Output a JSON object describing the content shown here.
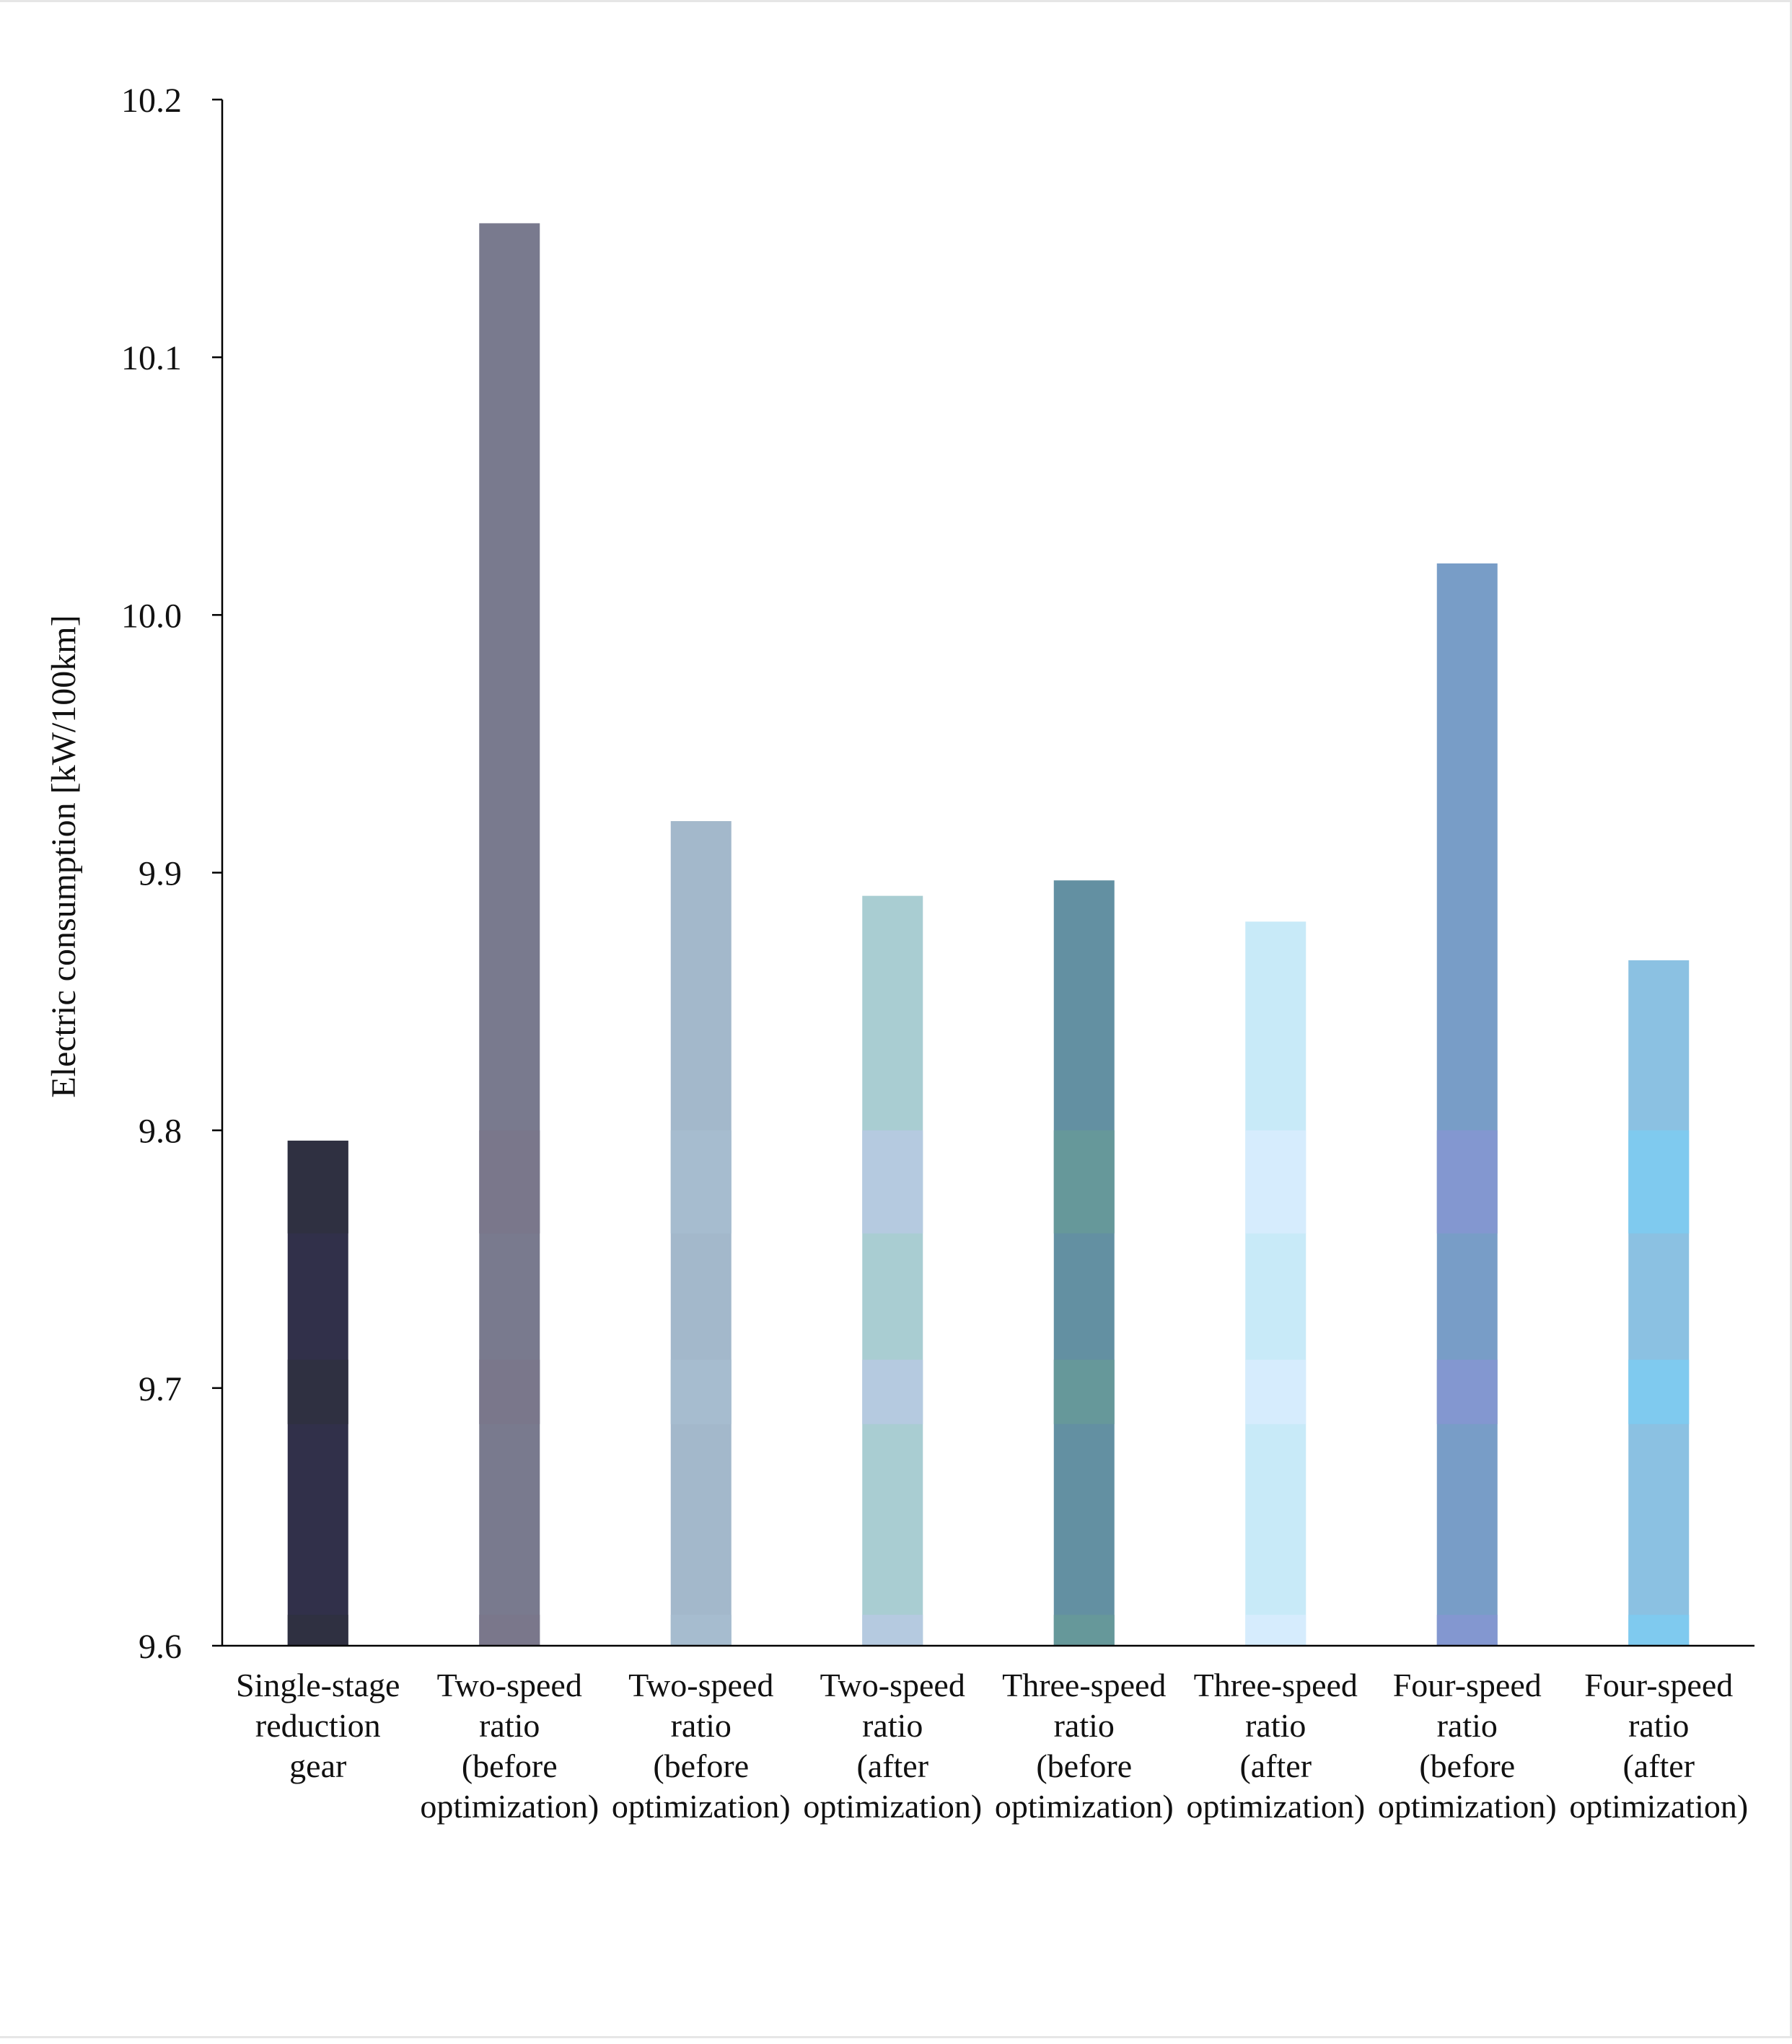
{
  "chart_data": {
    "type": "bar",
    "title": "",
    "xlabel": "",
    "ylabel": "Electric consumption [kW/100km]",
    "ylim": [
      9.6,
      10.2
    ],
    "yticks": [
      "9.6",
      "9.7",
      "9.8",
      "9.9",
      "10.0",
      "10.1",
      "10.2"
    ],
    "grid": false,
    "categories": [
      [
        "Single-stage",
        "reduction",
        "gear"
      ],
      [
        "Two-speed",
        "ratio",
        "(before",
        "optimization)"
      ],
      [
        "Two-speed",
        "ratio",
        "(before",
        "optimization)"
      ],
      [
        "Two-speed",
        "ratio",
        "(after",
        "optimization)"
      ],
      [
        "Three-speed",
        "ratio",
        "(before",
        "optimization)"
      ],
      [
        "Three-speed",
        "ratio",
        "(after",
        "optimization)"
      ],
      [
        "Four-speed",
        "ratio",
        "(before",
        "optimization)"
      ],
      [
        "Four-speed",
        "ratio",
        "(after",
        "optimization)"
      ]
    ],
    "values": [
      9.796,
      10.152,
      9.92,
      9.891,
      9.897,
      9.881,
      10.02,
      9.866
    ],
    "colors": [
      "#31304a",
      "#797a8e",
      "#a3b8cb",
      "#a9cdd2",
      "#6390a2",
      "#c8eaf8",
      "#789dc7",
      "#8bc1e2"
    ],
    "shade_colors": [
      "#2f3041",
      "#7a778b",
      "#a6bccf",
      "#b5cae0",
      "#66989a",
      "#d6ecfd",
      "#8397d0",
      "#7fcaef"
    ]
  }
}
